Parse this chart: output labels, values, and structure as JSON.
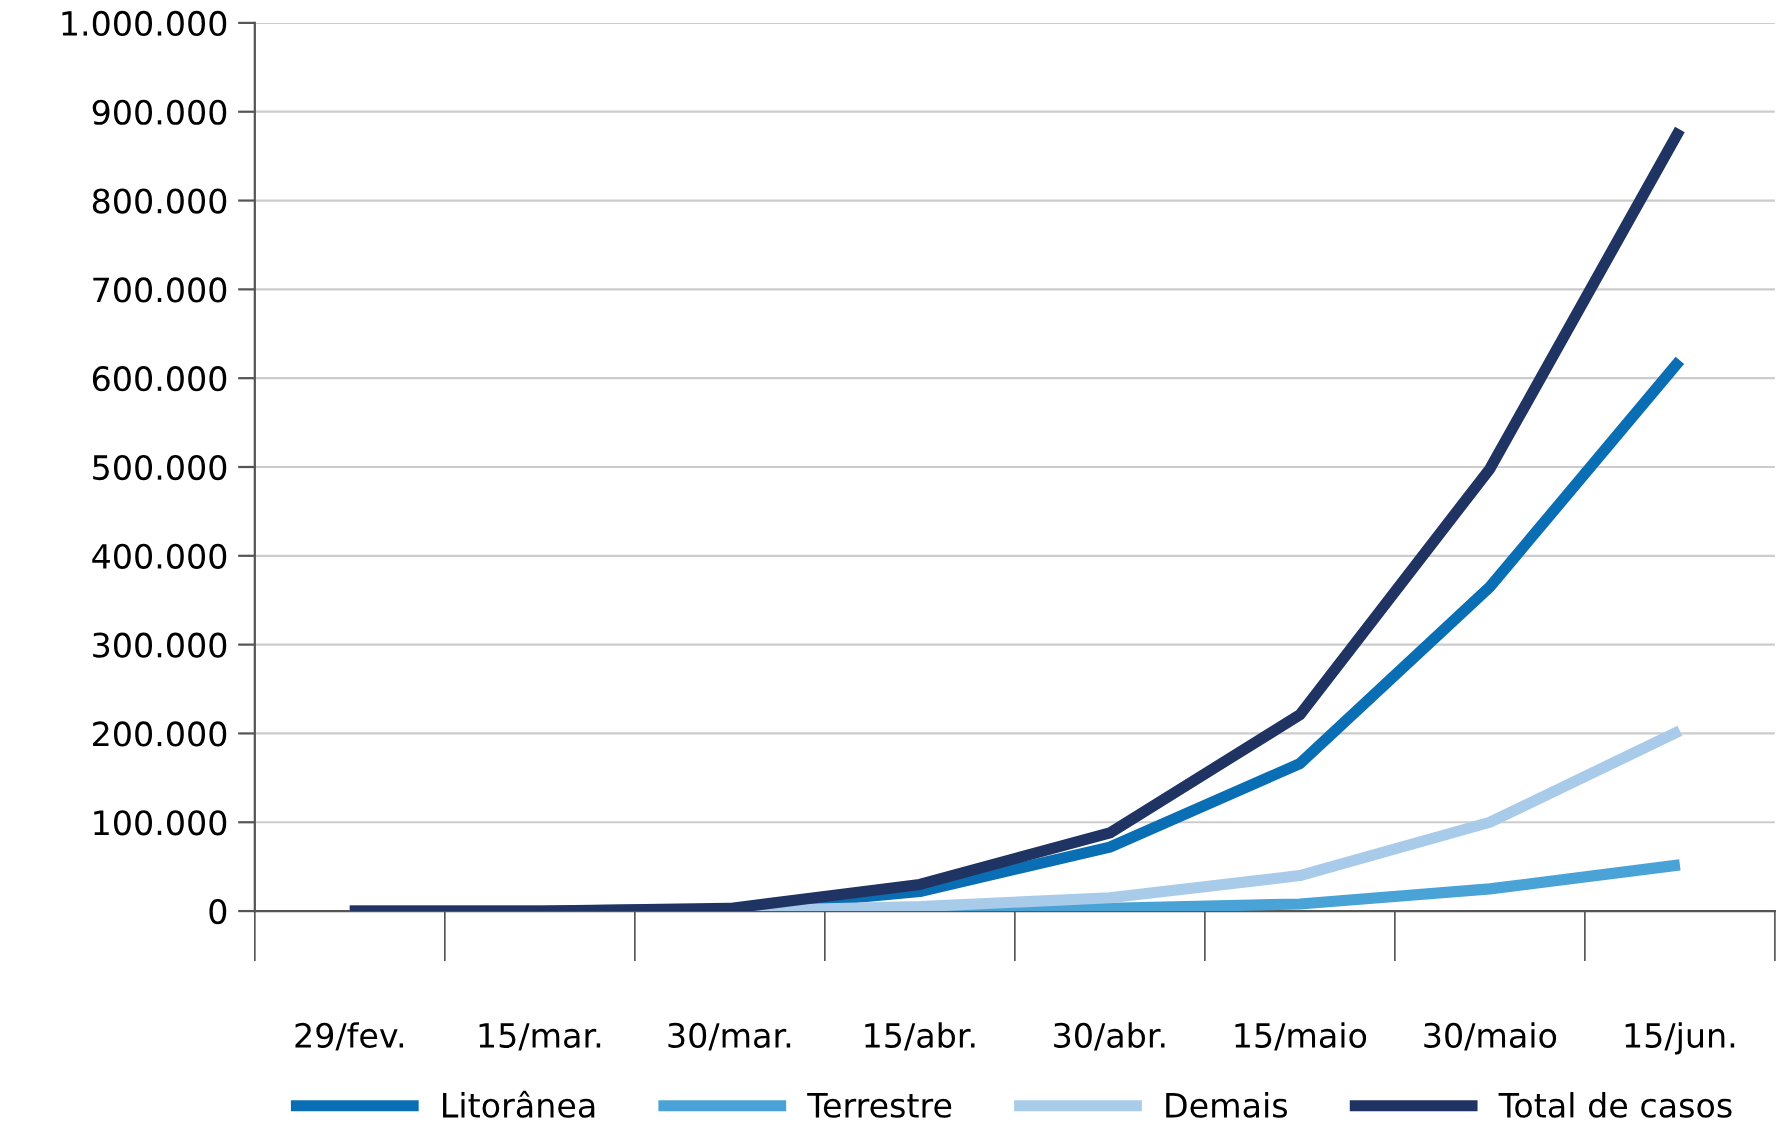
{
  "chart_data": {
    "type": "line",
    "categories": [
      "29/fev.",
      "15/mar.",
      "30/mar.",
      "15/abr.",
      "30/abr.",
      "15/maio",
      "30/maio",
      "15/jun."
    ],
    "series": [
      {
        "name": "Litorânea",
        "color": "#0a6eb4",
        "values": [
          0,
          0,
          2000,
          22000,
          72000,
          166000,
          365000,
          620000
        ]
      },
      {
        "name": "Terrestre",
        "color": "#4aa3d6",
        "values": [
          0,
          0,
          0,
          0,
          3000,
          8000,
          25000,
          52000
        ]
      },
      {
        "name": "Demais",
        "color": "#a9cbea",
        "values": [
          0,
          0,
          0,
          5000,
          15000,
          40000,
          100000,
          203000
        ]
      },
      {
        "name": "Total de casos",
        "color": "#1f3462",
        "values": [
          0,
          0,
          3000,
          30000,
          88000,
          221000,
          498000,
          880000
        ]
      }
    ],
    "ylim": [
      0,
      1000000
    ],
    "yticks": [
      0,
      {
        "value": 100000,
        "label": "100.000"
      },
      {
        "value": 200000,
        "label": "200.000"
      },
      {
        "value": 300000,
        "label": "300.000"
      },
      {
        "value": 400000,
        "label": "400.000"
      },
      {
        "value": 500000,
        "label": "500.000"
      },
      {
        "value": 600000,
        "label": "600.000"
      },
      {
        "value": 700000,
        "label": "700.000"
      },
      {
        "value": 800000,
        "label": "800.000"
      },
      {
        "value": 900000,
        "label": "900.000"
      },
      {
        "value": 1000000,
        "label": "1.000.000"
      }
    ],
    "grid": "y",
    "legend": "bottom",
    "marker": "none",
    "line_style": "solid"
  }
}
